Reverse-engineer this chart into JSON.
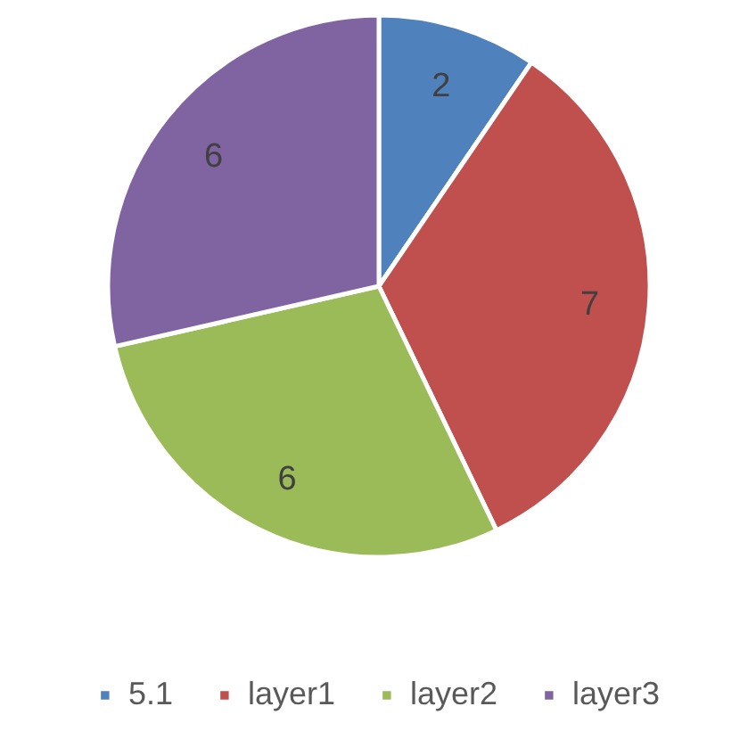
{
  "chart_data": {
    "type": "pie",
    "categories": [
      "5.1",
      "layer1",
      "layer2",
      "layer3"
    ],
    "values": [
      2,
      7,
      6,
      6
    ],
    "colors": [
      "#4f81bd",
      "#c0504d",
      "#9bbb59",
      "#8064a2"
    ],
    "data_labels": true,
    "legend": "bottom"
  }
}
